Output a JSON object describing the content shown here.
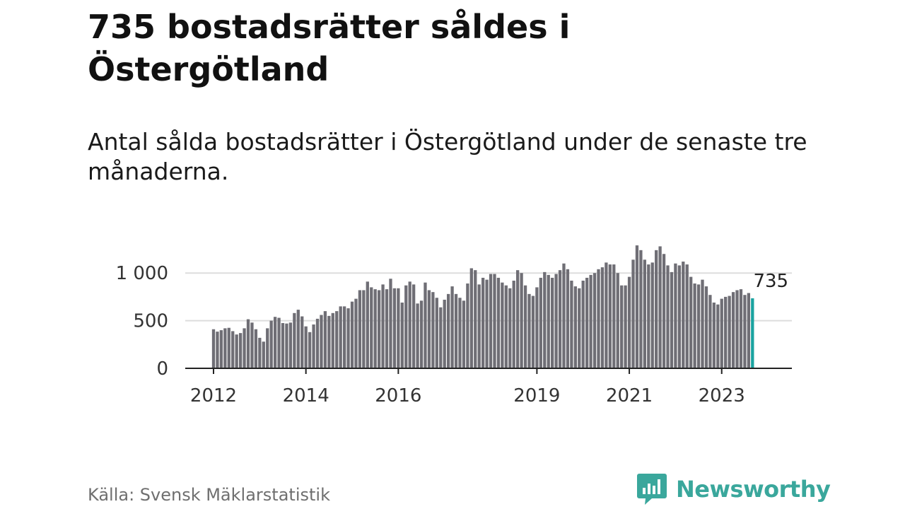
{
  "title": "735 bostadsrätter såldes i Östergötland",
  "subtitle": "Antal sålda bostadsrätter i Östergötland under de senaste tre månaderna.",
  "source": "Källa: Svensk Mäklarstatistik",
  "brand": "Newsworthy",
  "colors": {
    "bar": "#6f6e75",
    "highlight": "#1aa3a0",
    "grid": "#dddddd",
    "axis": "#222222",
    "brand": "#3aa79c"
  },
  "chart_data": {
    "type": "bar",
    "title": "735 bostadsrätter såldes i Östergötland",
    "subtitle": "Antal sålda bostadsrätter i Östergötland under de senaste tre månaderna.",
    "xlabel": "",
    "ylabel": "",
    "ylim": [
      0,
      1300
    ],
    "y_ticks": [
      0,
      500,
      1000
    ],
    "y_tick_labels": [
      "0",
      "500",
      "1 000"
    ],
    "x_ticks": [
      2012,
      2014,
      2016,
      2019,
      2021,
      2023
    ],
    "grid": true,
    "start": "2012-01",
    "highlight_label": "735",
    "values": [
      410,
      385,
      400,
      420,
      425,
      390,
      355,
      370,
      420,
      515,
      480,
      410,
      320,
      280,
      420,
      500,
      540,
      530,
      475,
      470,
      480,
      580,
      615,
      545,
      440,
      380,
      460,
      520,
      560,
      600,
      550,
      580,
      600,
      650,
      650,
      630,
      700,
      730,
      820,
      820,
      910,
      850,
      830,
      820,
      880,
      830,
      940,
      840,
      840,
      690,
      870,
      910,
      880,
      680,
      710,
      900,
      820,
      800,
      740,
      640,
      720,
      780,
      860,
      780,
      740,
      710,
      890,
      1050,
      1030,
      880,
      950,
      930,
      990,
      990,
      950,
      900,
      870,
      840,
      920,
      1030,
      1000,
      870,
      780,
      760,
      850,
      950,
      1010,
      980,
      950,
      990,
      1030,
      1100,
      1040,
      920,
      860,
      840,
      920,
      950,
      980,
      1000,
      1040,
      1060,
      1110,
      1090,
      1090,
      1000,
      870,
      870,
      960,
      1140,
      1290,
      1240,
      1140,
      1090,
      1110,
      1240,
      1280,
      1200,
      1080,
      1010,
      1100,
      1080,
      1120,
      1090,
      960,
      890,
      880,
      930,
      860,
      770,
      690,
      670,
      730,
      750,
      760,
      800,
      820,
      830,
      770,
      790,
      735
    ]
  }
}
